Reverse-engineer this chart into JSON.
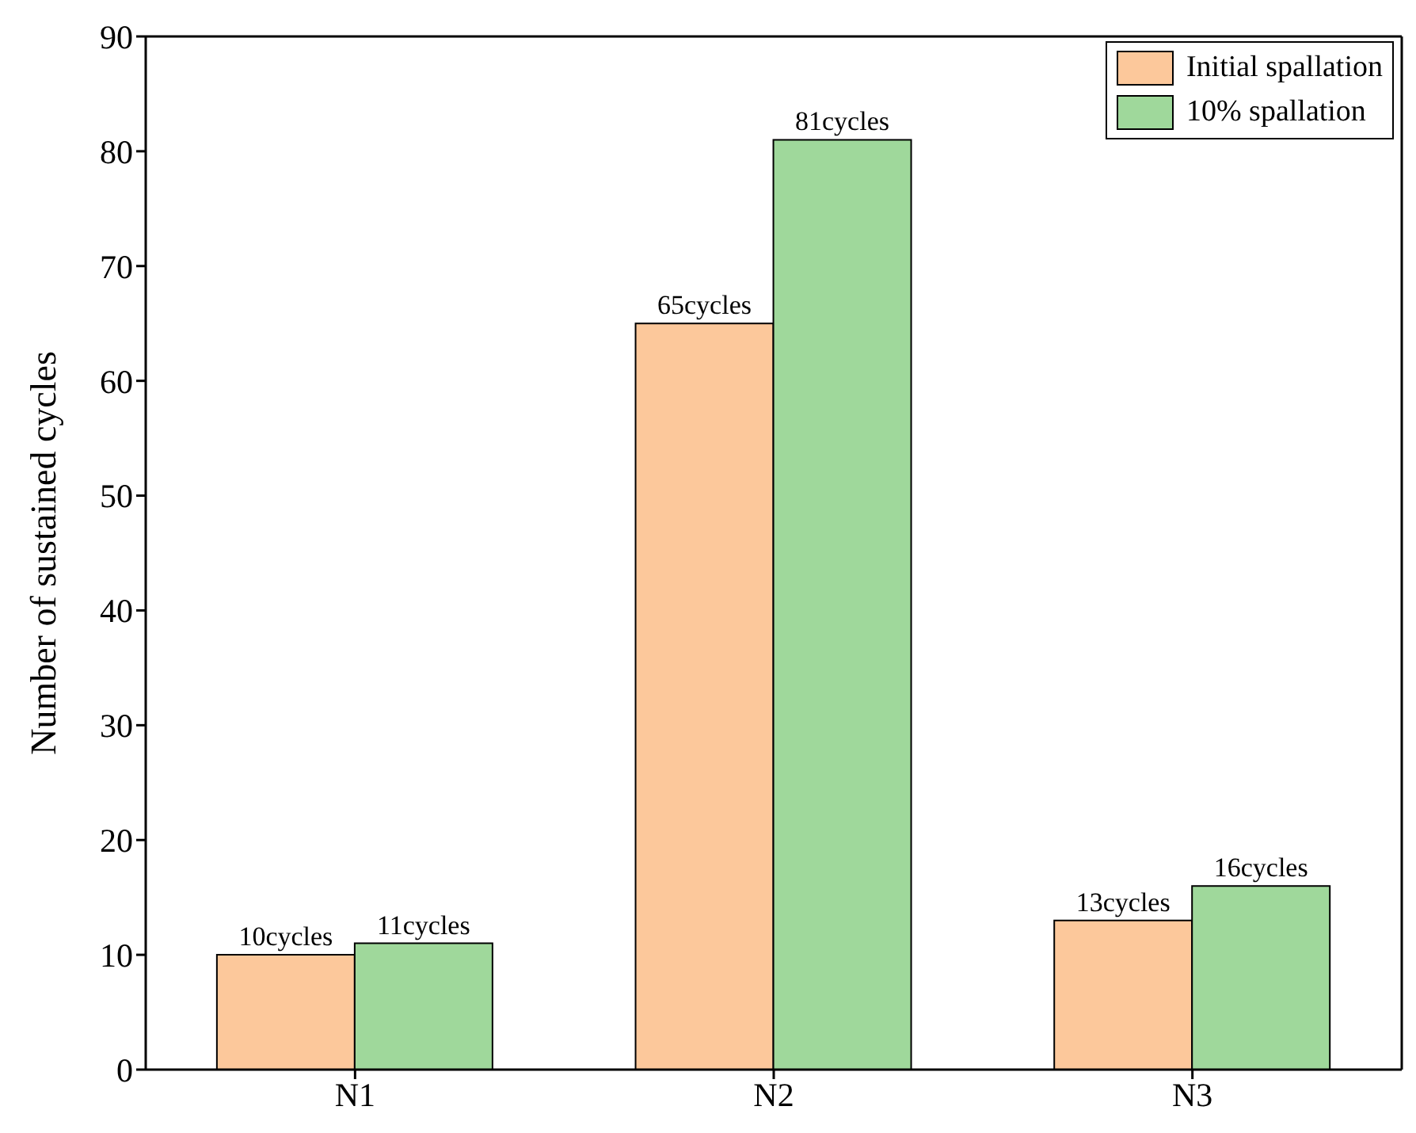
{
  "chart_data": {
    "type": "bar",
    "ylabel": "Number of sustained cycles",
    "categories": [
      "N1",
      "N2",
      "N3"
    ],
    "series": [
      {
        "name": "Initial spallation",
        "color": "#fcc89b",
        "values": [
          10,
          65,
          13
        ],
        "value_labels": [
          "10cycles",
          "65cycles",
          "13cycles"
        ]
      },
      {
        "name": "10% spallation",
        "color": "#9fd89b",
        "values": [
          11,
          81,
          16
        ],
        "value_labels": [
          "11cycles",
          "81cycles",
          "16cycles"
        ]
      }
    ],
    "ylim": [
      0,
      90
    ],
    "yticks": [
      0,
      10,
      20,
      30,
      40,
      50,
      60,
      70,
      80,
      90
    ],
    "grid": false,
    "legend": "top right"
  }
}
